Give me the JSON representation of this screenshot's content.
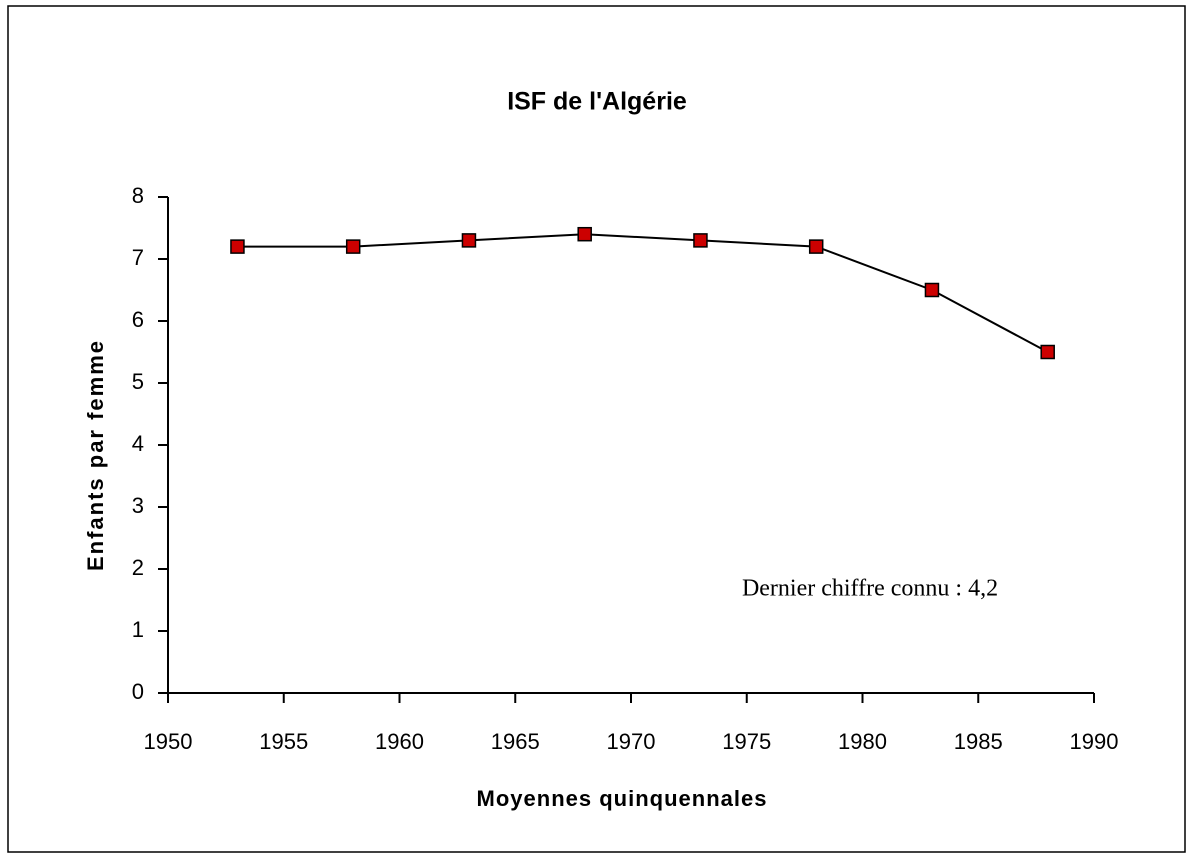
{
  "chart_data": {
    "type": "line",
    "title": "ISF de l'Algérie",
    "x_label": "Moyennes quinquennales",
    "y_label": "Enfants par femme",
    "annotation": "Dernier chiffre connu : 4,2",
    "x": [
      1953,
      1958,
      1963,
      1968,
      1973,
      1978,
      1983,
      1988
    ],
    "values": [
      7.2,
      7.2,
      7.3,
      7.4,
      7.3,
      7.2,
      6.5,
      5.5
    ],
    "color": "#cc0000",
    "line_color": "#000000",
    "marker": "square",
    "xlim": [
      1950,
      1990
    ],
    "xticks": [
      1950,
      1955,
      1960,
      1965,
      1970,
      1975,
      1980,
      1985,
      1990
    ],
    "ylim": [
      0,
      8
    ],
    "yticks": [
      0,
      1,
      2,
      3,
      4,
      5,
      6,
      7,
      8
    ],
    "grid": false
  }
}
